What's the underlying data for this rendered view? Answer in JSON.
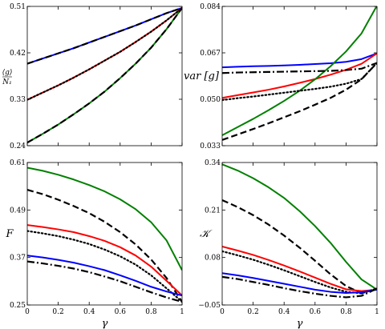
{
  "chart_data": [
    {
      "type": "line",
      "panel": "top-left",
      "xlabel": "",
      "ylabel_num": "⟨g⟩",
      "ylabel_den": "N₁",
      "xlim": [
        0,
        1
      ],
      "ylim": [
        0.24,
        0.51
      ],
      "xticks": [],
      "yticks": [
        0.24,
        0.33,
        0.42,
        0.51
      ],
      "ytick_labels": [
        "0.24",
        "0.33",
        "0.42",
        "0.51"
      ],
      "x": [
        0,
        0.1,
        0.2,
        0.3,
        0.4,
        0.5,
        0.6,
        0.7,
        0.8,
        0.9,
        1.0
      ],
      "series": [
        {
          "color": "#0000ff",
          "style": "solid",
          "values": [
            0.399,
            0.409,
            0.419,
            0.429,
            0.44,
            0.451,
            0.462,
            0.473,
            0.485,
            0.497,
            0.507
          ]
        },
        {
          "color": "#000000",
          "style": "dashed",
          "values": [
            0.399,
            0.409,
            0.419,
            0.429,
            0.44,
            0.451,
            0.462,
            0.473,
            0.485,
            0.497,
            0.507
          ]
        },
        {
          "color": "#ff0000",
          "style": "solid",
          "values": [
            0.329,
            0.343,
            0.357,
            0.372,
            0.388,
            0.405,
            0.422,
            0.441,
            0.461,
            0.483,
            0.507
          ]
        },
        {
          "color": "#000000",
          "style": "dotted",
          "values": [
            0.329,
            0.343,
            0.357,
            0.372,
            0.388,
            0.405,
            0.422,
            0.441,
            0.461,
            0.483,
            0.507
          ]
        },
        {
          "color": "#008000",
          "style": "solid",
          "values": [
            0.246,
            0.263,
            0.281,
            0.301,
            0.322,
            0.345,
            0.371,
            0.399,
            0.43,
            0.466,
            0.507
          ]
        },
        {
          "color": "#000000",
          "style": "dashed",
          "values": [
            0.246,
            0.263,
            0.281,
            0.301,
            0.322,
            0.345,
            0.371,
            0.399,
            0.43,
            0.466,
            0.507
          ]
        }
      ]
    },
    {
      "type": "line",
      "panel": "top-right",
      "xlabel": "",
      "ylabel": "var [g]",
      "xlim": [
        0,
        1
      ],
      "ylim": [
        0.033,
        0.084
      ],
      "xticks": [],
      "yticks": [
        0.033,
        0.05,
        0.067,
        0.084
      ],
      "ytick_labels": [
        "0.033",
        "0.050",
        "0.067",
        "0.084"
      ],
      "x": [
        0,
        0.1,
        0.2,
        0.3,
        0.4,
        0.5,
        0.6,
        0.7,
        0.8,
        0.9,
        1.0
      ],
      "series": [
        {
          "color": "#0000ff",
          "style": "solid",
          "values": [
            0.0617,
            0.0619,
            0.0621,
            0.0622,
            0.0624,
            0.0626,
            0.0629,
            0.0632,
            0.0637,
            0.0647,
            0.0668
          ]
        },
        {
          "color": "#ff0000",
          "style": "solid",
          "values": [
            0.0505,
            0.0515,
            0.0525,
            0.0535,
            0.0547,
            0.056,
            0.0574,
            0.059,
            0.0608,
            0.063,
            0.0668
          ]
        },
        {
          "color": "#008000",
          "style": "solid",
          "values": [
            0.0368,
            0.0398,
            0.0428,
            0.046,
            0.0494,
            0.0531,
            0.0573,
            0.0621,
            0.0675,
            0.0741,
            0.0843
          ]
        },
        {
          "color": "#000000",
          "style": "dashdot",
          "values": [
            0.0596,
            0.0598,
            0.0599,
            0.06,
            0.0601,
            0.0602,
            0.0603,
            0.0604,
            0.0607,
            0.0612,
            0.0633
          ]
        },
        {
          "color": "#000000",
          "style": "dotted",
          "values": [
            0.0497,
            0.0504,
            0.051,
            0.0517,
            0.0524,
            0.0531,
            0.0538,
            0.0546,
            0.0557,
            0.0574,
            0.0633
          ]
        },
        {
          "color": "#000000",
          "style": "dashed",
          "values": [
            0.0351,
            0.0371,
            0.0391,
            0.0412,
            0.0434,
            0.0456,
            0.048,
            0.0505,
            0.0535,
            0.0573,
            0.0633
          ]
        }
      ]
    },
    {
      "type": "line",
      "panel": "bottom-left",
      "xlabel": "γ",
      "ylabel": "F",
      "xlim": [
        0,
        1
      ],
      "ylim": [
        0.25,
        0.61
      ],
      "xticks": [
        0,
        0.2,
        0.4,
        0.6,
        0.8,
        1
      ],
      "xtick_labels": [
        "0",
        "0.2",
        "0.4",
        "0.6",
        "0.8",
        "1"
      ],
      "yticks": [
        0.25,
        0.37,
        0.49,
        0.61
      ],
      "ytick_labels": [
        "0.25",
        "0.37",
        "0.49",
        "0.61"
      ],
      "x": [
        0,
        0.1,
        0.2,
        0.3,
        0.4,
        0.5,
        0.6,
        0.7,
        0.8,
        0.9,
        1.0
      ],
      "series": [
        {
          "color": "#008000",
          "style": "solid",
          "values": [
            0.597,
            0.589,
            0.579,
            0.567,
            0.553,
            0.537,
            0.517,
            0.492,
            0.459,
            0.413,
            0.338
          ]
        },
        {
          "color": "#000000",
          "style": "dashed",
          "values": [
            0.541,
            0.53,
            0.516,
            0.5,
            0.482,
            0.46,
            0.434,
            0.403,
            0.365,
            0.318,
            0.258
          ]
        },
        {
          "color": "#ff0000",
          "style": "solid",
          "values": [
            0.452,
            0.447,
            0.441,
            0.434,
            0.424,
            0.412,
            0.396,
            0.375,
            0.347,
            0.311,
            0.274
          ]
        },
        {
          "color": "#000000",
          "style": "dotted",
          "values": [
            0.437,
            0.431,
            0.424,
            0.415,
            0.404,
            0.39,
            0.373,
            0.352,
            0.325,
            0.292,
            0.258
          ]
        },
        {
          "color": "#0000ff",
          "style": "solid",
          "values": [
            0.375,
            0.37,
            0.364,
            0.357,
            0.348,
            0.338,
            0.325,
            0.311,
            0.296,
            0.284,
            0.274
          ]
        },
        {
          "color": "#000000",
          "style": "dashdot",
          "values": [
            0.36,
            0.355,
            0.349,
            0.342,
            0.333,
            0.322,
            0.31,
            0.296,
            0.282,
            0.269,
            0.258
          ]
        }
      ]
    },
    {
      "type": "line",
      "panel": "bottom-right",
      "xlabel": "γ",
      "ylabel": "𝒦",
      "xlim": [
        0,
        1
      ],
      "ylim": [
        -0.05,
        0.34
      ],
      "xticks": [
        0,
        0.2,
        0.4,
        0.6,
        0.8,
        1
      ],
      "xtick_labels": [
        "0",
        "0.2",
        "0.4",
        "0.6",
        "0.8",
        "1"
      ],
      "yticks": [
        -0.05,
        0.08,
        0.21,
        0.34
      ],
      "ytick_labels": [
        "−0.05",
        "0.08",
        "0.21",
        "0.34"
      ],
      "x": [
        0,
        0.1,
        0.2,
        0.3,
        0.4,
        0.5,
        0.6,
        0.7,
        0.8,
        0.9,
        1.0
      ],
      "series": [
        {
          "color": "#008000",
          "style": "solid",
          "values": [
            0.335,
            0.318,
            0.297,
            0.272,
            0.243,
            0.207,
            0.166,
            0.12,
            0.068,
            0.02,
            -0.008
          ]
        },
        {
          "color": "#000000",
          "style": "dashed",
          "values": [
            0.237,
            0.218,
            0.196,
            0.17,
            0.14,
            0.107,
            0.071,
            0.034,
            0.002,
            -0.018,
            -0.005
          ]
        },
        {
          "color": "#ff0000",
          "style": "solid",
          "values": [
            0.11,
            0.099,
            0.087,
            0.073,
            0.058,
            0.042,
            0.025,
            0.008,
            -0.007,
            -0.012,
            -0.008
          ]
        },
        {
          "color": "#000000",
          "style": "dotted",
          "values": [
            0.097,
            0.086,
            0.074,
            0.06,
            0.045,
            0.029,
            0.013,
            -0.002,
            -0.014,
            -0.018,
            -0.005
          ]
        },
        {
          "color": "#0000ff",
          "style": "solid",
          "values": [
            0.037,
            0.031,
            0.024,
            0.016,
            0.008,
            0.0,
            -0.008,
            -0.014,
            -0.017,
            -0.015,
            -0.008
          ]
        },
        {
          "color": "#000000",
          "style": "dashdot",
          "values": [
            0.027,
            0.021,
            0.013,
            0.005,
            -0.004,
            -0.012,
            -0.019,
            -0.025,
            -0.029,
            -0.025,
            -0.005
          ]
        }
      ]
    }
  ]
}
